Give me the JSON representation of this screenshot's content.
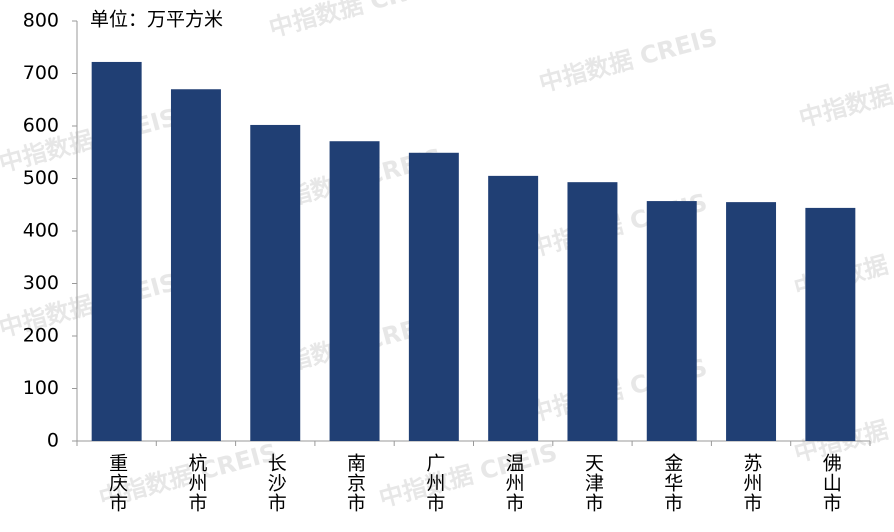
{
  "chart_data": {
    "type": "bar",
    "subtitle": "单位：万平方米",
    "watermark": "中指数据 CREIS",
    "categories": [
      "重庆市",
      "杭州市",
      "长沙市",
      "南京市",
      "广州市",
      "温州市",
      "天津市",
      "金华市",
      "苏州市",
      "佛山市"
    ],
    "values": [
      722,
      670,
      602,
      571,
      549,
      505,
      493,
      457,
      455,
      444
    ],
    "color": "#203f74",
    "ylim": [
      0,
      800
    ],
    "yticks": [
      0,
      100,
      200,
      300,
      400,
      500,
      600,
      700,
      800
    ],
    "grid": false
  }
}
